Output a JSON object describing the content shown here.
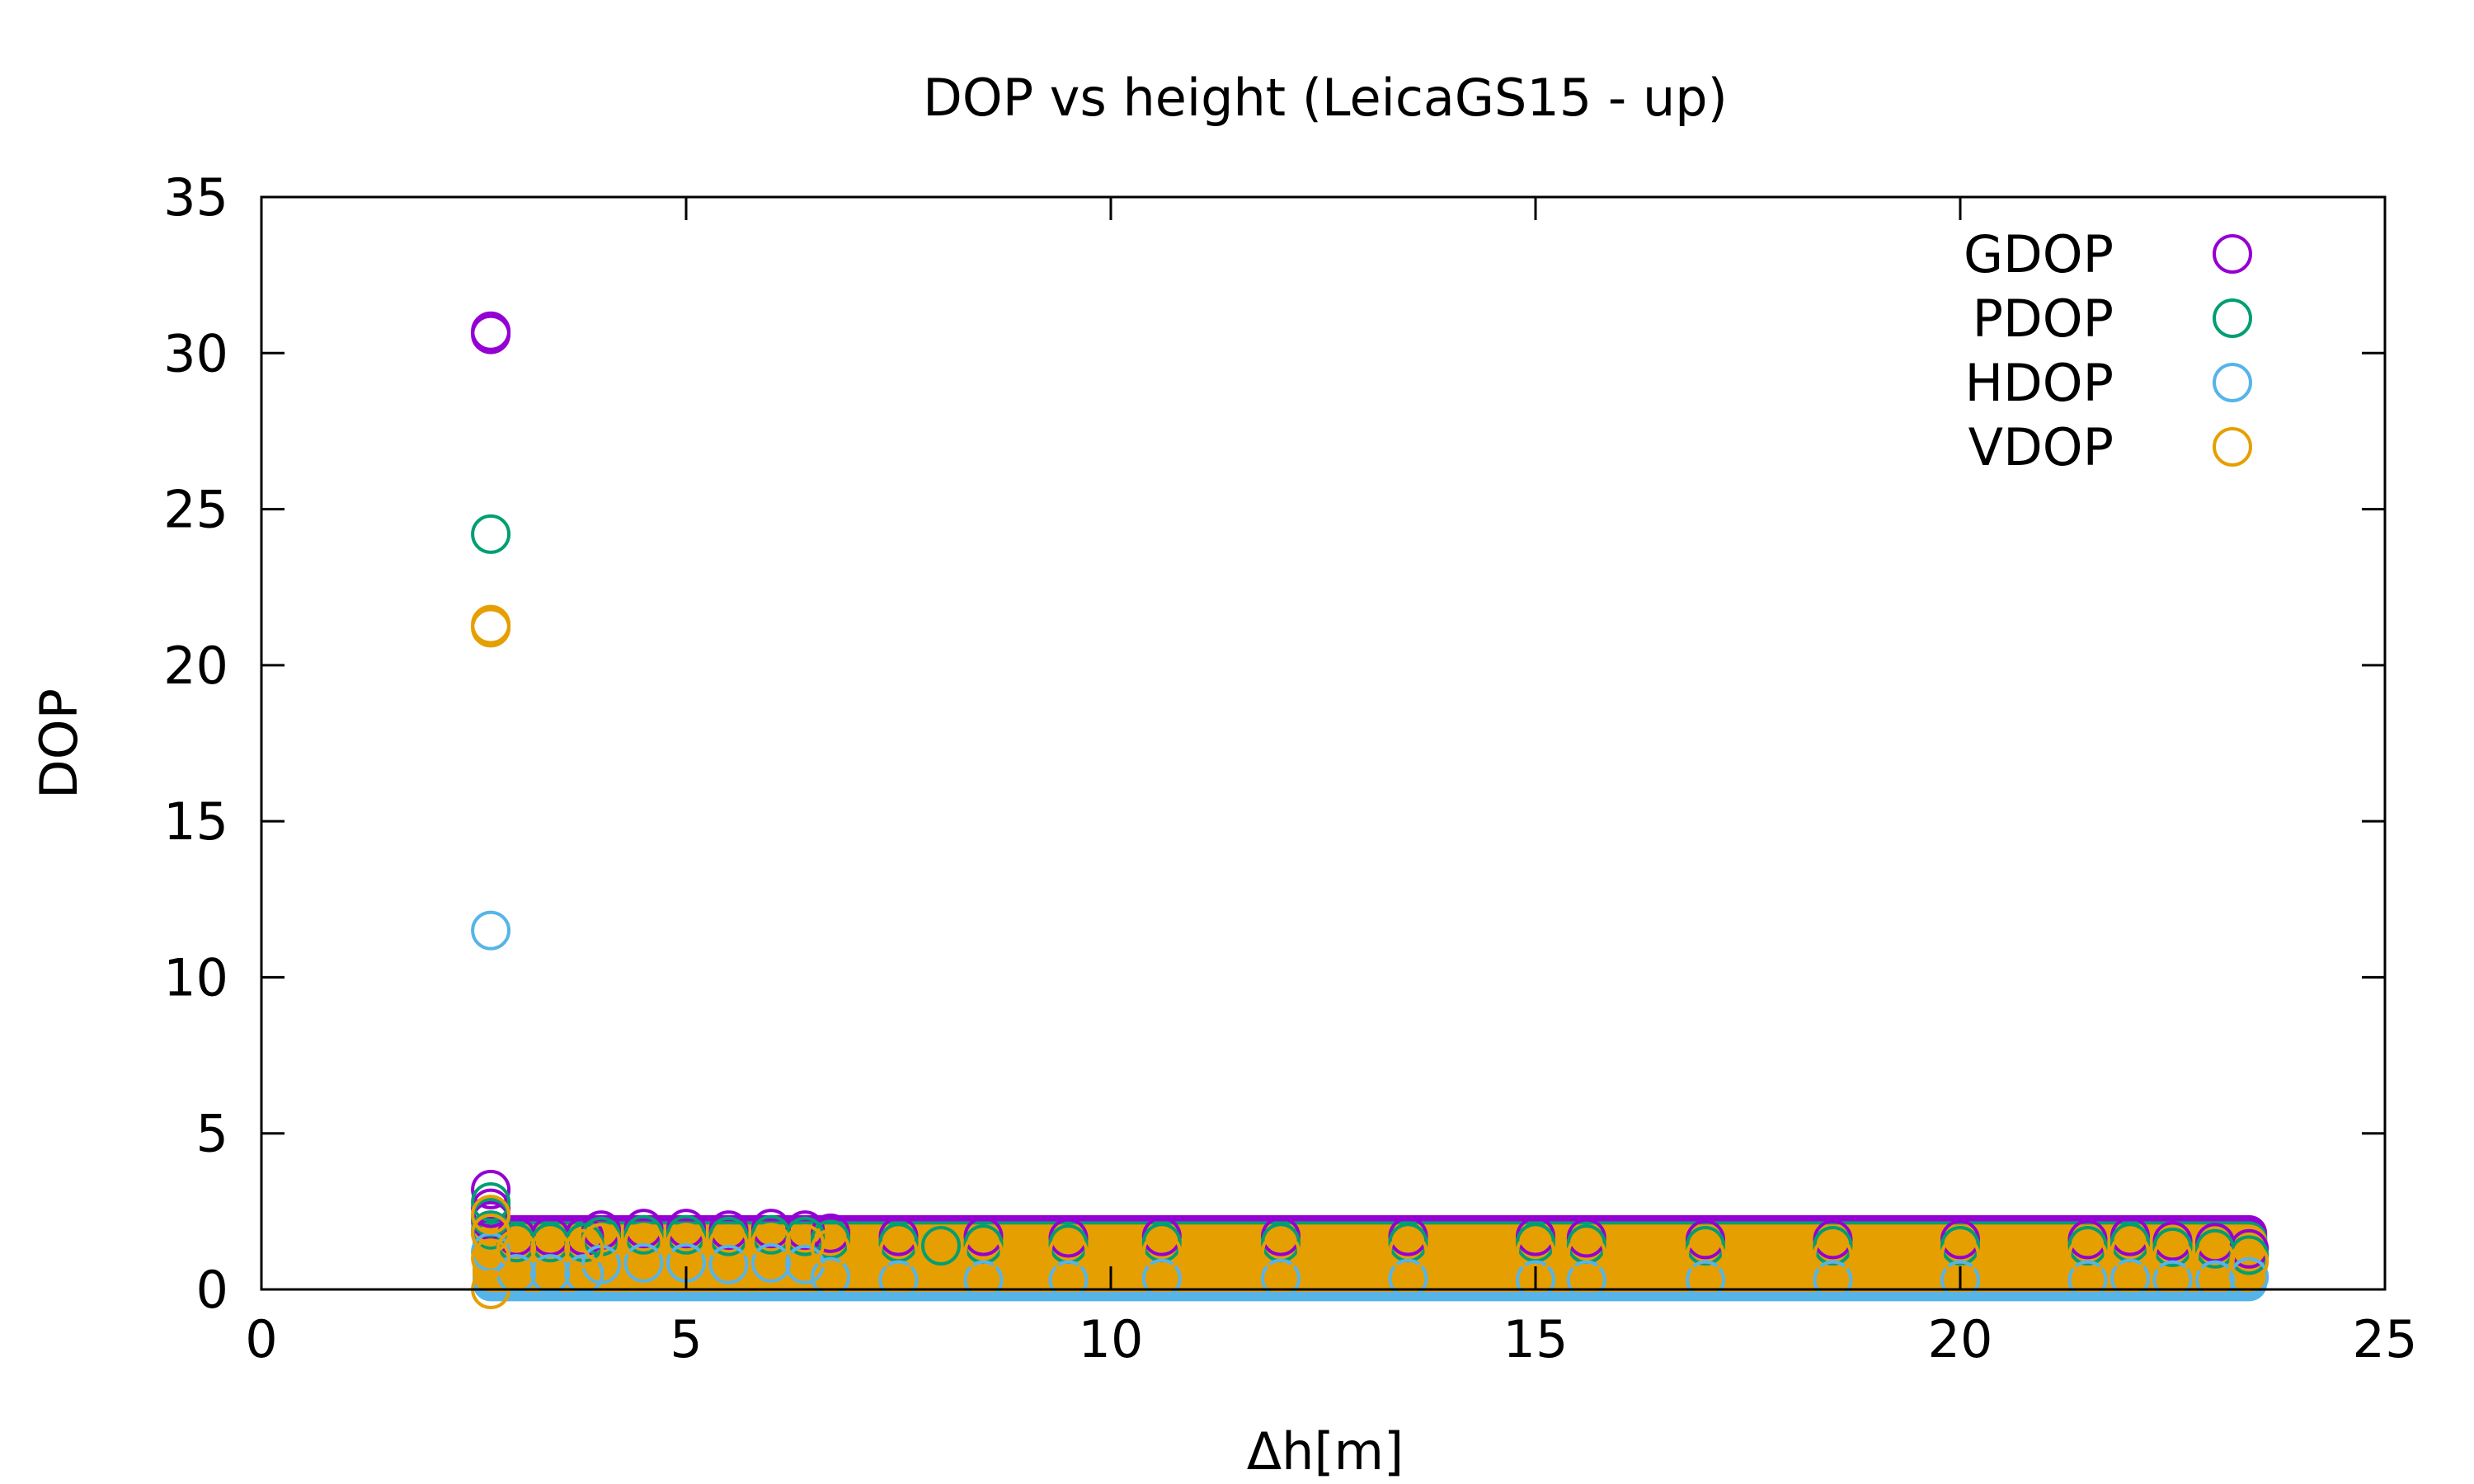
{
  "chart_data": {
    "type": "scatter",
    "title": "DOP vs height (LeicaGS15 - up)",
    "xlabel": "Δh[m]",
    "ylabel": "DOP",
    "xlim": [
      0,
      25
    ],
    "ylim": [
      0,
      35
    ],
    "xticks": [
      0,
      5,
      10,
      15,
      20,
      25
    ],
    "yticks": [
      0,
      5,
      10,
      15,
      20,
      25,
      30,
      35
    ],
    "xtick_labels": [
      "0",
      "5",
      "10",
      "15",
      "20",
      "25"
    ],
    "ytick_labels": [
      "0",
      "5",
      "10",
      "15",
      "20",
      "25",
      "30",
      "35"
    ],
    "legend_position": "top-right",
    "grid": false,
    "series": [
      {
        "name": "GDOP",
        "color": "#9400d3",
        "points": [
          [
            2.7,
            30.7
          ],
          [
            2.7,
            30.6
          ],
          [
            2.7,
            3.2
          ],
          [
            2.7,
            2.6
          ],
          [
            2.7,
            2.2
          ],
          [
            3.0,
            1.7
          ],
          [
            3.4,
            1.7
          ],
          [
            3.8,
            1.7
          ],
          [
            4.0,
            1.9
          ],
          [
            4.5,
            1.95
          ],
          [
            5.0,
            1.95
          ],
          [
            5.5,
            1.9
          ],
          [
            6.0,
            1.95
          ],
          [
            6.4,
            1.9
          ],
          [
            6.7,
            1.8
          ],
          [
            7.5,
            1.7
          ],
          [
            8.5,
            1.7
          ],
          [
            9.5,
            1.65
          ],
          [
            10.6,
            1.7
          ],
          [
            12.0,
            1.7
          ],
          [
            13.5,
            1.7
          ],
          [
            15.0,
            1.7
          ],
          [
            15.6,
            1.65
          ],
          [
            17.0,
            1.6
          ],
          [
            18.5,
            1.6
          ],
          [
            20.0,
            1.6
          ],
          [
            21.5,
            1.6
          ],
          [
            22.0,
            1.7
          ],
          [
            22.5,
            1.55
          ],
          [
            23.0,
            1.5
          ],
          [
            23.4,
            1.3
          ]
        ]
      },
      {
        "name": "PDOP",
        "color": "#009e73",
        "points": [
          [
            2.7,
            24.2
          ],
          [
            2.7,
            2.8
          ],
          [
            2.7,
            2.3
          ],
          [
            2.7,
            1.9
          ],
          [
            3.0,
            1.5
          ],
          [
            3.4,
            1.5
          ],
          [
            3.8,
            1.5
          ],
          [
            4.0,
            1.7
          ],
          [
            4.5,
            1.75
          ],
          [
            5.0,
            1.75
          ],
          [
            5.5,
            1.7
          ],
          [
            6.0,
            1.75
          ],
          [
            6.4,
            1.7
          ],
          [
            6.7,
            1.6
          ],
          [
            7.5,
            1.5
          ],
          [
            8.0,
            1.4
          ],
          [
            8.5,
            1.45
          ],
          [
            9.5,
            1.45
          ],
          [
            10.6,
            1.5
          ],
          [
            12.0,
            1.5
          ],
          [
            13.5,
            1.5
          ],
          [
            15.0,
            1.5
          ],
          [
            15.6,
            1.45
          ],
          [
            17.0,
            1.4
          ],
          [
            18.5,
            1.4
          ],
          [
            20.0,
            1.4
          ],
          [
            21.5,
            1.4
          ],
          [
            22.0,
            1.5
          ],
          [
            22.5,
            1.35
          ],
          [
            23.0,
            1.3
          ],
          [
            23.4,
            1.1
          ]
        ]
      },
      {
        "name": "HDOP",
        "color": "#56b4e9",
        "points": [
          [
            2.7,
            11.5
          ],
          [
            2.7,
            1.8
          ],
          [
            2.7,
            1.2
          ],
          [
            3.0,
            0.5
          ],
          [
            3.4,
            0.5
          ],
          [
            3.8,
            0.5
          ],
          [
            4.0,
            0.8
          ],
          [
            4.5,
            0.85
          ],
          [
            5.0,
            0.85
          ],
          [
            5.5,
            0.8
          ],
          [
            6.0,
            0.85
          ],
          [
            6.4,
            0.8
          ],
          [
            6.7,
            0.4
          ],
          [
            7.5,
            0.3
          ],
          [
            8.5,
            0.3
          ],
          [
            9.5,
            0.3
          ],
          [
            10.6,
            0.35
          ],
          [
            12.0,
            0.35
          ],
          [
            13.5,
            0.35
          ],
          [
            15.0,
            0.3
          ],
          [
            15.6,
            0.3
          ],
          [
            17.0,
            0.3
          ],
          [
            18.5,
            0.3
          ],
          [
            20.0,
            0.3
          ],
          [
            21.5,
            0.3
          ],
          [
            22.0,
            0.35
          ],
          [
            22.5,
            0.3
          ],
          [
            23.0,
            0.3
          ],
          [
            23.4,
            0.4
          ]
        ]
      },
      {
        "name": "VDOP",
        "color": "#e69f00",
        "points": [
          [
            2.7,
            21.3
          ],
          [
            2.7,
            21.2
          ],
          [
            2.7,
            2.4
          ],
          [
            2.7,
            1.8
          ],
          [
            2.7,
            1.0
          ],
          [
            2.7,
            0.0
          ],
          [
            3.0,
            1.3
          ],
          [
            3.4,
            1.3
          ],
          [
            3.8,
            1.3
          ],
          [
            4.0,
            1.5
          ],
          [
            4.5,
            1.5
          ],
          [
            5.0,
            1.5
          ],
          [
            5.5,
            1.45
          ],
          [
            6.0,
            1.5
          ],
          [
            6.4,
            1.45
          ],
          [
            6.7,
            1.3
          ],
          [
            7.5,
            1.2
          ],
          [
            8.5,
            1.2
          ],
          [
            9.5,
            1.2
          ],
          [
            10.6,
            1.2
          ],
          [
            12.0,
            1.2
          ],
          [
            13.5,
            1.2
          ],
          [
            15.0,
            1.2
          ],
          [
            15.6,
            1.15
          ],
          [
            17.0,
            1.1
          ],
          [
            18.5,
            1.1
          ],
          [
            20.0,
            1.1
          ],
          [
            21.5,
            1.1
          ],
          [
            22.0,
            1.2
          ],
          [
            22.5,
            1.05
          ],
          [
            23.0,
            1.0
          ],
          [
            23.4,
            0.9
          ]
        ]
      }
    ],
    "bands": [
      {
        "series": "GDOP",
        "x_from": 2.7,
        "x_to": 23.4,
        "y_from": 0.7,
        "y_to": 1.8
      },
      {
        "series": "PDOP",
        "x_from": 2.7,
        "x_to": 23.4,
        "y_from": 0.6,
        "y_to": 1.6
      },
      {
        "series": "HDOP",
        "x_from": 2.7,
        "x_to": 23.4,
        "y_from": 0.2,
        "y_to": 0.9
      },
      {
        "series": "VDOP",
        "x_from": 2.7,
        "x_to": 23.4,
        "y_from": 0.5,
        "y_to": 1.5
      }
    ]
  }
}
